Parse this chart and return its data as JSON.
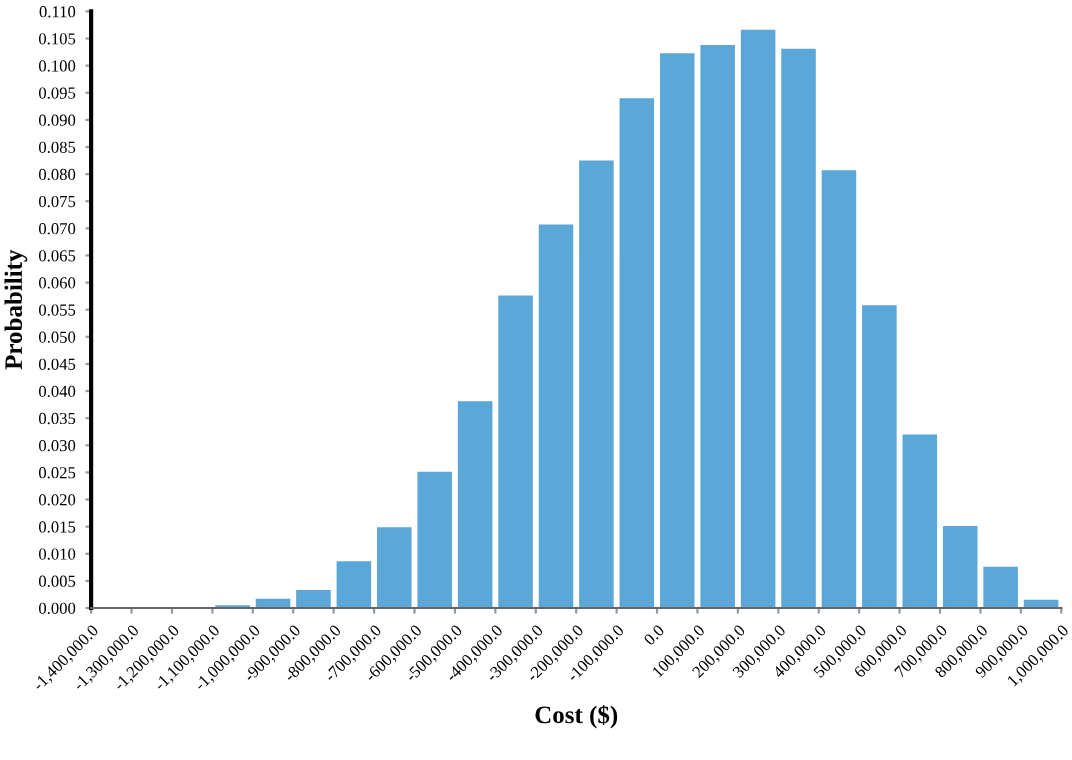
{
  "chart_data": {
    "type": "histogram",
    "xlabel": "Cost ($)",
    "ylabel": "Probability",
    "bins": [
      -1400000,
      -1300000,
      -1200000,
      -1100000,
      -1000000,
      -900000,
      -800000,
      -700000,
      -600000,
      -500000,
      -400000,
      -300000,
      -200000,
      -100000,
      0,
      100000,
      200000,
      300000,
      400000,
      500000,
      600000,
      700000,
      800000,
      900000,
      1000000
    ],
    "values": [
      0,
      0,
      0,
      0.0003,
      0.0015,
      0.0031,
      0.0084,
      0.0147,
      0.0249,
      0.0379,
      0.0574,
      0.0705,
      0.0823,
      0.0938,
      0.1021,
      0.1036,
      0.1064,
      0.1029,
      0.0805,
      0.0556,
      0.0318,
      0.0149,
      0.0074,
      0.0013
    ],
    "color": "#5aa7d8",
    "xlim": [
      -1400000,
      1000000
    ],
    "xticks": [
      {
        "value": -1400000,
        "label": "-1,400,000.0"
      },
      {
        "value": -1300000,
        "label": "-1,300,000.0"
      },
      {
        "value": -1200000,
        "label": "-1,200,000.0"
      },
      {
        "value": -1100000,
        "label": "-1,100,000.0"
      },
      {
        "value": -1000000,
        "label": "-1,000,000.0"
      },
      {
        "value": -900000,
        "label": "-900,000.0"
      },
      {
        "value": -800000,
        "label": "-800,000.0"
      },
      {
        "value": -700000,
        "label": "-700,000.0"
      },
      {
        "value": -600000,
        "label": "-600,000.0"
      },
      {
        "value": -500000,
        "label": "-500,000.0"
      },
      {
        "value": -400000,
        "label": "-400,000.0"
      },
      {
        "value": -300000,
        "label": "-300,000.0"
      },
      {
        "value": -200000,
        "label": "-200,000.0"
      },
      {
        "value": -100000,
        "label": "-100,000.0"
      },
      {
        "value": 0,
        "label": "0.0"
      },
      {
        "value": 100000,
        "label": "100,000.0"
      },
      {
        "value": 200000,
        "label": "200,000.0"
      },
      {
        "value": 300000,
        "label": "300,000.0"
      },
      {
        "value": 400000,
        "label": "400,000.0"
      },
      {
        "value": 500000,
        "label": "500,000.0"
      },
      {
        "value": 600000,
        "label": "600,000.0"
      },
      {
        "value": 700000,
        "label": "700,000.0"
      },
      {
        "value": 800000,
        "label": "800,000.0"
      },
      {
        "value": 900000,
        "label": "900,000.0"
      },
      {
        "value": 1000000,
        "label": "1,000,000.0"
      }
    ],
    "ylim": [
      0,
      0.11
    ],
    "yticks": [
      {
        "value": 0,
        "label": "0.000"
      },
      {
        "value": 0.005,
        "label": "0.005"
      },
      {
        "value": 0.01,
        "label": "0.010"
      },
      {
        "value": 0.015,
        "label": "0.015"
      },
      {
        "value": 0.02,
        "label": "0.020"
      },
      {
        "value": 0.025,
        "label": "0.025"
      },
      {
        "value": 0.03,
        "label": "0.030"
      },
      {
        "value": 0.035,
        "label": "0.035"
      },
      {
        "value": 0.04,
        "label": "0.040"
      },
      {
        "value": 0.045,
        "label": "0.045"
      },
      {
        "value": 0.05,
        "label": "0.050"
      },
      {
        "value": 0.055,
        "label": "0.055"
      },
      {
        "value": 0.06,
        "label": "0.060"
      },
      {
        "value": 0.065,
        "label": "0.065"
      },
      {
        "value": 0.07,
        "label": "0.070"
      },
      {
        "value": 0.075,
        "label": "0.075"
      },
      {
        "value": 0.08,
        "label": "0.080"
      },
      {
        "value": 0.085,
        "label": "0.085"
      },
      {
        "value": 0.09,
        "label": "0.090"
      },
      {
        "value": 0.095,
        "label": "0.095"
      },
      {
        "value": 0.1,
        "label": "0.100"
      },
      {
        "value": 0.105,
        "label": "0.105"
      },
      {
        "value": 0.11,
        "label": "0.110"
      }
    ],
    "grid": false
  }
}
